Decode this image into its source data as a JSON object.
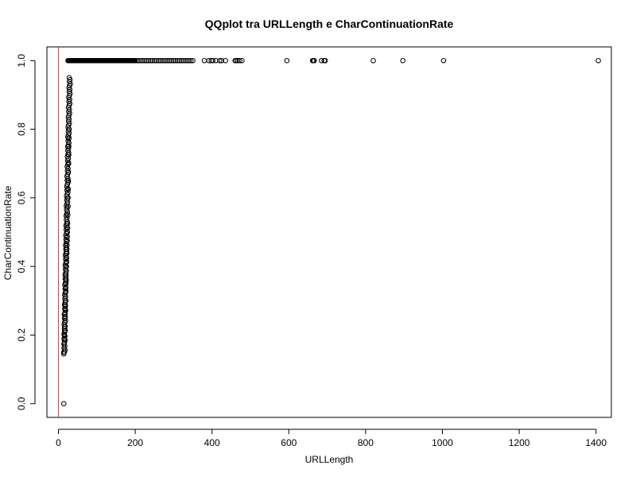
{
  "chart_data": {
    "type": "scatter",
    "title": "QQplot tra URLLength e CharContinuationRate",
    "xlabel": "URLLength",
    "ylabel": "CharContinuationRate",
    "xlim": [
      -30,
      1440
    ],
    "ylim": [
      -0.04,
      1.04
    ],
    "x_ticks": [
      0,
      200,
      400,
      600,
      800,
      1000,
      1200,
      1400
    ],
    "y_ticks": [
      0.0,
      0.2,
      0.4,
      0.6,
      0.8,
      1.0
    ],
    "x_tick_labels": [
      "0",
      "200",
      "400",
      "600",
      "800",
      "1000",
      "1200",
      "1400"
    ],
    "y_tick_labels": [
      "0.0",
      "0.2",
      "0.4",
      "0.6",
      "0.8",
      "1.0"
    ],
    "reference_line": {
      "type": "vertical",
      "x": 0,
      "color": "#e8393c"
    },
    "marker": {
      "shape": "open-circle",
      "color": "#000000"
    },
    "grid": false,
    "points_x": [
      14,
      14,
      14.5,
      15,
      15,
      15.5,
      16,
      16,
      16.5,
      17,
      17,
      17.5,
      18,
      18,
      18.5,
      19,
      19,
      19.5,
      20,
      20,
      20.5,
      21,
      21,
      21.5,
      22,
      22,
      22.5,
      23,
      23,
      23.5,
      24,
      24,
      24.5,
      25,
      25,
      25.5,
      26,
      26,
      26.5,
      27,
      27,
      27.5,
      28,
      30,
      35,
      40,
      45,
      50,
      55,
      60,
      65,
      70,
      75,
      80,
      85,
      90,
      95,
      100,
      105,
      110,
      115,
      120,
      125,
      130,
      135,
      140,
      145,
      150,
      155,
      160,
      165,
      170,
      175,
      180,
      185,
      190,
      195,
      200,
      205,
      210,
      215,
      220,
      225,
      230,
      235,
      240,
      245,
      250,
      255,
      260,
      265,
      270,
      275,
      280,
      285,
      290,
      295,
      300,
      305,
      310,
      315,
      320,
      325,
      330,
      335,
      340,
      345,
      350,
      380,
      392,
      398,
      402,
      410,
      420,
      425,
      435,
      460,
      463,
      467,
      472,
      478,
      595,
      662,
      664,
      666,
      685,
      692,
      695,
      820,
      897,
      1003,
      1406
    ],
    "points_y": [
      0.0,
      0.15,
      0.162,
      0.175,
      0.187,
      0.2,
      0.212,
      0.225,
      0.238,
      0.25,
      0.262,
      0.275,
      0.287,
      0.3,
      0.312,
      0.325,
      0.338,
      0.35,
      0.362,
      0.375,
      0.387,
      0.4,
      0.412,
      0.425,
      0.438,
      0.45,
      0.462,
      0.475,
      0.487,
      0.5,
      0.512,
      0.525,
      0.55,
      0.575,
      0.6,
      0.625,
      0.65,
      0.675,
      0.7,
      0.725,
      0.75,
      0.775,
      0.8,
      1.0,
      1.0,
      1.0,
      1.0,
      1.0,
      1.0,
      1.0,
      1.0,
      1.0,
      1.0,
      1.0,
      1.0,
      1.0,
      1.0,
      1.0,
      1.0,
      1.0,
      1.0,
      1.0,
      1.0,
      1.0,
      1.0,
      1.0,
      1.0,
      1.0,
      1.0,
      1.0,
      1.0,
      1.0,
      1.0,
      1.0,
      1.0,
      1.0,
      1.0,
      1.0,
      1.0,
      1.0,
      1.0,
      1.0,
      1.0,
      1.0,
      1.0,
      1.0,
      1.0,
      1.0,
      1.0,
      1.0,
      1.0,
      1.0,
      1.0,
      1.0,
      1.0,
      1.0,
      1.0,
      1.0,
      1.0,
      1.0,
      1.0,
      1.0,
      1.0,
      1.0,
      1.0,
      1.0,
      1.0,
      1.0,
      1.0,
      1.0,
      1.0,
      1.0,
      1.0,
      1.0,
      1.0,
      1.0,
      1.0,
      1.0,
      1.0,
      1.0,
      1.0,
      1.0,
      1.0,
      1.0,
      1.0,
      1.0,
      1.0,
      1.0,
      1.0,
      1.0,
      1.0,
      1.0,
      1.0
    ],
    "dense_column": {
      "x_min": 14,
      "x_max": 28,
      "y_min": 0.145,
      "y_max": 0.95
    }
  }
}
